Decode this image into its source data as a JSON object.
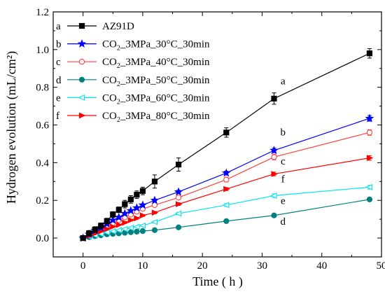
{
  "chart_data": {
    "type": "line",
    "title": "",
    "xlabel": "Time ( h )",
    "ylabel": "Hydrogen evolution (mL/cm²)",
    "xlim": [
      -5,
      50
    ],
    "ylim": [
      -0.1,
      1.2
    ],
    "xticks": [
      0,
      10,
      20,
      30,
      40,
      50
    ],
    "yticks": [
      0.0,
      0.2,
      0.4,
      0.6,
      0.8,
      1.0,
      1.2
    ],
    "xtick_labels": [
      "0",
      "10",
      "20",
      "30",
      "40",
      "50"
    ],
    "ytick_labels": [
      "0.0",
      "0.2",
      "0.4",
      "0.6",
      "0.8",
      "1.0",
      "1.2"
    ],
    "grid": false,
    "legend_position": "top-left",
    "x": [
      0,
      1,
      2,
      3,
      4,
      5,
      6,
      7,
      8,
      9,
      10,
      12,
      16,
      24,
      32,
      48
    ],
    "series": [
      {
        "letter": "a",
        "name": "AZ91D",
        "color": "#000000",
        "marker": "square",
        "values": [
          0.0,
          0.025,
          0.045,
          0.065,
          0.09,
          0.125,
          0.15,
          0.18,
          0.205,
          0.23,
          0.25,
          0.3,
          0.39,
          0.56,
          0.74,
          0.98
        ],
        "errors": [
          0.01,
          0.015,
          0.015,
          0.015,
          0.015,
          0.015,
          0.015,
          0.02,
          0.02,
          0.02,
          0.02,
          0.035,
          0.035,
          0.025,
          0.03,
          0.025
        ]
      },
      {
        "letter": "b",
        "name": "CO_2_3MPa_30°C_30min",
        "name_prefix": "CO",
        "name_sub": "2",
        "name_suffix": "_3MPa_30°C_30min",
        "color": "#0000ff",
        "marker": "star",
        "values": [
          0.0,
          0.02,
          0.04,
          0.055,
          0.075,
          0.095,
          0.11,
          0.13,
          0.145,
          0.16,
          0.175,
          0.2,
          0.245,
          0.345,
          0.465,
          0.635
        ],
        "errors": [
          0.005,
          0.005,
          0.005,
          0.005,
          0.005,
          0.005,
          0.005,
          0.006,
          0.006,
          0.006,
          0.006,
          0.007,
          0.008,
          0.01,
          0.012,
          0.015
        ]
      },
      {
        "letter": "c",
        "name": "CO_2_3MPa_40°C_30min",
        "name_prefix": "CO",
        "name_sub": "2",
        "name_suffix": "_3MPa_40°C_30min",
        "color": "#ff4040",
        "marker": "open-circle",
        "values": [
          0.0,
          0.015,
          0.03,
          0.045,
          0.065,
          0.08,
          0.095,
          0.11,
          0.125,
          0.14,
          0.155,
          0.175,
          0.215,
          0.31,
          0.43,
          0.56
        ],
        "errors": [
          0.005,
          0.005,
          0.005,
          0.005,
          0.005,
          0.005,
          0.005,
          0.006,
          0.006,
          0.006,
          0.006,
          0.007,
          0.008,
          0.012,
          0.015,
          0.015
        ]
      },
      {
        "letter": "d",
        "name": "CO_2_3MPa_50°C_30min",
        "name_prefix": "CO",
        "name_sub": "2",
        "name_suffix": "_3MPa_50°C_30min",
        "color": "#008080",
        "marker": "filled-circle",
        "values": [
          0.0,
          0.005,
          0.01,
          0.015,
          0.02,
          0.022,
          0.025,
          0.028,
          0.031,
          0.034,
          0.037,
          0.042,
          0.057,
          0.09,
          0.12,
          0.205
        ],
        "errors": [
          0.003,
          0.003,
          0.003,
          0.003,
          0.003,
          0.003,
          0.003,
          0.003,
          0.003,
          0.003,
          0.003,
          0.004,
          0.005,
          0.006,
          0.008,
          0.01
        ]
      },
      {
        "letter": "e",
        "name": "CO_2_3MPa_60°C_30min",
        "name_prefix": "CO",
        "name_sub": "2",
        "name_suffix": "_3MPa_60°C_30min",
        "color": "#00e5ee",
        "marker": "left-triangle",
        "values": [
          0.0,
          0.008,
          0.015,
          0.022,
          0.03,
          0.036,
          0.042,
          0.048,
          0.054,
          0.06,
          0.066,
          0.085,
          0.13,
          0.175,
          0.225,
          0.27
        ],
        "errors": [
          0.004,
          0.004,
          0.004,
          0.004,
          0.004,
          0.004,
          0.004,
          0.004,
          0.004,
          0.004,
          0.004,
          0.005,
          0.006,
          0.008,
          0.01,
          0.01
        ]
      },
      {
        "letter": "f",
        "name": "CO_2_3MPa_80°C_30min",
        "name_prefix": "CO",
        "name_sub": "2",
        "name_suffix": "_3MPa_80°C_30min",
        "color": "#ff0000",
        "marker": "right-triangle",
        "values": [
          0.0,
          0.012,
          0.025,
          0.035,
          0.048,
          0.06,
          0.07,
          0.082,
          0.095,
          0.105,
          0.12,
          0.135,
          0.18,
          0.26,
          0.34,
          0.425
        ],
        "errors": [
          0.004,
          0.004,
          0.004,
          0.004,
          0.004,
          0.004,
          0.004,
          0.005,
          0.005,
          0.005,
          0.005,
          0.006,
          0.007,
          0.008,
          0.01,
          0.012
        ]
      }
    ],
    "annotations": [
      {
        "text": "a",
        "x": 33.5,
        "y": 0.815
      },
      {
        "text": "b",
        "x": 33.5,
        "y": 0.545
      },
      {
        "text": "c",
        "x": 33.5,
        "y": 0.39
      },
      {
        "text": "f",
        "x": 33.5,
        "y": 0.295
      },
      {
        "text": "e",
        "x": 33.5,
        "y": 0.18
      },
      {
        "text": "d",
        "x": 33.5,
        "y": 0.07
      }
    ]
  }
}
